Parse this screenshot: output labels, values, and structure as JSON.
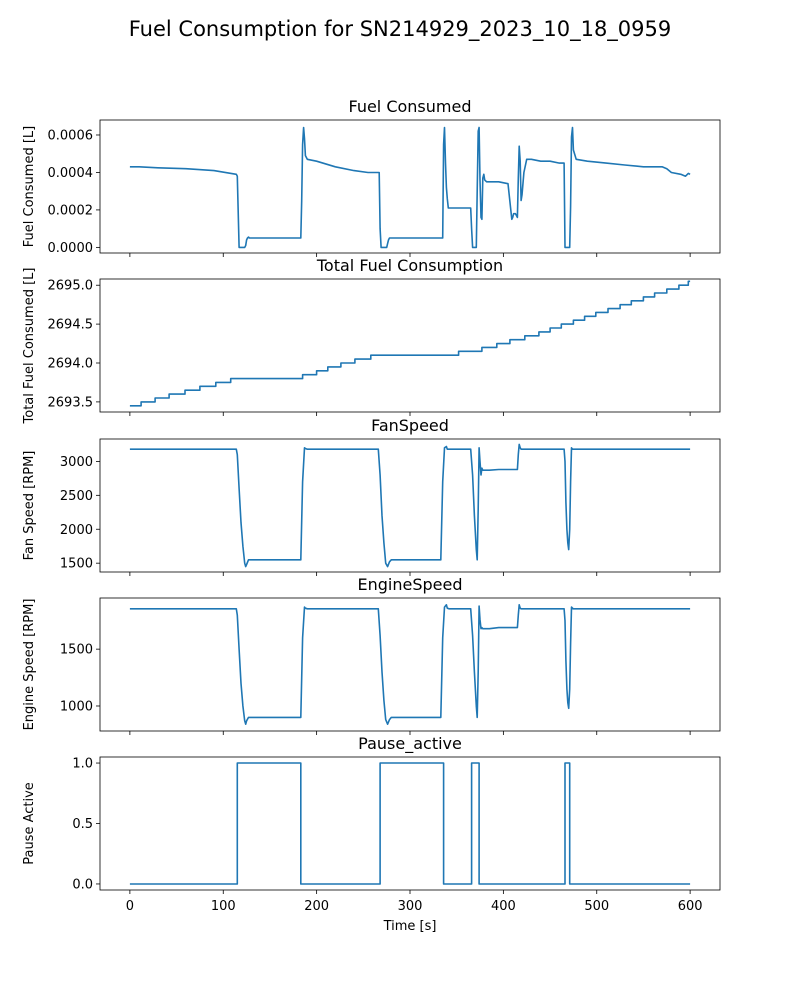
{
  "chart_data": {
    "type": "line",
    "title": "Fuel Consumption for SN214929_2023_10_18_0959",
    "line_color": "#1f77b4",
    "shared_x": {
      "label": "Time [s]",
      "range": [
        -32,
        632
      ],
      "ticks": [
        0,
        100,
        200,
        300,
        400,
        500,
        600
      ],
      "tick_labels": [
        "0",
        "100",
        "200",
        "300",
        "400",
        "500",
        "600"
      ]
    },
    "grid": false,
    "panels": [
      {
        "title": "Fuel Consumed",
        "ylabel": "Fuel Consumed [L]",
        "ylim": [
          -3e-05,
          0.00068
        ],
        "yticks": [
          0,
          0.0002,
          0.0004,
          0.0006
        ],
        "ytick_labels": [
          "0.0000",
          "0.0002",
          "0.0004",
          "0.0006"
        ],
        "series": [
          {
            "x": [
              0,
              10,
              30,
              60,
              90,
              114,
              115,
              117,
              123,
              124,
              125,
              126,
              127,
              128,
              130,
              140,
              160,
              183,
              184,
              185,
              186,
              187,
              188,
              190,
              200,
              220,
              240,
              255,
              267,
              268,
              269,
              270,
              275,
              276,
              277,
              278,
              280,
              300,
              320,
              335,
              336,
              337,
              338,
              339,
              340,
              341,
              345,
              350,
              355,
              365,
              366,
              367,
              368,
              369,
              370,
              371,
              372,
              373,
              374,
              375,
              376,
              377,
              378,
              379,
              380,
              382,
              385,
              395,
              405,
              408,
              409,
              410,
              411,
              413,
              415,
              416,
              417,
              418,
              419,
              420,
              422,
              425,
              430,
              440,
              450,
              460,
              464,
              465,
              466,
              467,
              468,
              470,
              471,
              472,
              473,
              474,
              475,
              478,
              490,
              510,
              530,
              550,
              570,
              575,
              580,
              590,
              595,
              598,
              600
            ],
            "y": [
              0.00043,
              0.00043,
              0.000425,
              0.00042,
              0.00041,
              0.00039,
              0.00038,
              0,
              0,
              1e-05,
              4e-05,
              5e-05,
              5.5e-05,
              5e-05,
              5e-05,
              5e-05,
              5e-05,
              5e-05,
              0.00025,
              0.00055,
              0.00064,
              0.00058,
              0.00049,
              0.00047,
              0.00046,
              0.00043,
              0.00041,
              0.0004,
              0.0004,
              0.0001,
              0,
              0,
              0,
              2e-05,
              4e-05,
              5e-05,
              5e-05,
              5e-05,
              5e-05,
              5e-05,
              0.00055,
              0.00064,
              0.00045,
              0.00032,
              0.00026,
              0.00021,
              0.00021,
              0.00021,
              0.00021,
              0.00021,
              0.0001,
              0,
              0,
              0,
              0,
              0,
              0.0003,
              0.00062,
              0.00064,
              0.00036,
              0.00016,
              0.00015,
              0.00037,
              0.00039,
              0.00036,
              0.00035,
              0.00035,
              0.00035,
              0.00034,
              0.0002,
              0.00015,
              0.00016,
              0.00018,
              0.00018,
              0.00016,
              0.00037,
              0.00054,
              0.00046,
              0.00025,
              0.00028,
              0.0004,
              0.00047,
              0.00047,
              0.00046,
              0.00046,
              0.00045,
              0.00045,
              0.00045,
              0,
              0,
              0,
              0,
              0,
              0.00022,
              0.00059,
              0.00064,
              0.00052,
              0.00047,
              0.00046,
              0.00045,
              0.00044,
              0.00043,
              0.00043,
              0.00042,
              0.0004,
              0.00039,
              0.00038,
              0.000395,
              0.00039
            ]
          }
        ]
      },
      {
        "title": "Total Fuel Consumption",
        "ylabel": "Total Fuel Consumed [L]",
        "ylim": [
          2693.37,
          2695.08
        ],
        "yticks": [
          2693.5,
          2694.0,
          2694.5,
          2695.0
        ],
        "ytick_labels": [
          "2693.5",
          "2694.0",
          "2694.5",
          "2695.0"
        ],
        "series": [
          {
            "x": [
              0,
              12,
              12,
              27,
              27,
              42,
              42,
              59,
              59,
              75,
              75,
              92,
              92,
              108,
              108,
              185,
              185,
              200,
              200,
              212,
              212,
              226,
              226,
              241,
              241,
              258,
              258,
              352,
              352,
              377,
              377,
              393,
              393,
              407,
              407,
              423,
              423,
              438,
              438,
              450,
              450,
              462,
              462,
              475,
              475,
              487,
              487,
              499,
              499,
              512,
              512,
              525,
              525,
              537,
              537,
              550,
              550,
              562,
              562,
              575,
              575,
              588,
              588,
              598,
              598,
              600
            ],
            "y": [
              2693.45,
              2693.45,
              2693.5,
              2693.5,
              2693.55,
              2693.55,
              2693.6,
              2693.6,
              2693.65,
              2693.65,
              2693.7,
              2693.7,
              2693.75,
              2693.75,
              2693.8,
              2693.8,
              2693.85,
              2693.85,
              2693.9,
              2693.9,
              2693.95,
              2693.95,
              2694.0,
              2694.0,
              2694.05,
              2694.05,
              2694.1,
              2694.1,
              2694.15,
              2694.15,
              2694.2,
              2694.2,
              2694.25,
              2694.25,
              2694.3,
              2694.3,
              2694.35,
              2694.35,
              2694.4,
              2694.4,
              2694.45,
              2694.45,
              2694.5,
              2694.5,
              2694.55,
              2694.55,
              2694.6,
              2694.6,
              2694.65,
              2694.65,
              2694.7,
              2694.7,
              2694.75,
              2694.75,
              2694.8,
              2694.8,
              2694.85,
              2694.85,
              2694.9,
              2694.9,
              2694.95,
              2694.95,
              2695.0,
              2695.0,
              2695.05,
              2695.05
            ]
          }
        ]
      },
      {
        "title": "FanSpeed",
        "ylabel": "Fan Speed [RPM]",
        "ylim": [
          1370,
          3330
        ],
        "yticks": [
          1500,
          2000,
          2500,
          3000
        ],
        "ytick_labels": [
          "1500",
          "2000",
          "2500",
          "3000"
        ],
        "series": [
          {
            "x": [
              0,
              50,
              100,
              114,
              115,
              117,
              119,
              121,
              123,
              124,
              125,
              127,
              130,
              150,
              175,
              183,
              185,
              187,
              188,
              190,
              220,
              266,
              268,
              270,
              272,
              274,
              276,
              278,
              280,
              290,
              310,
              333,
              335,
              337,
              339,
              340,
              342,
              345,
              355,
              365,
              367,
              369,
              371,
              372,
              373,
              374,
              375,
              376,
              377,
              378,
              379,
              380,
              385,
              395,
              405,
              410,
              415,
              416,
              417,
              418,
              419,
              420,
              422,
              430,
              450,
              465,
              466,
              467,
              468,
              469,
              470,
              471,
              472,
              473,
              474,
              475,
              476,
              480,
              500,
              550,
              600
            ],
            "y": [
              3180,
              3180,
              3180,
              3180,
              3100,
              2600,
              2100,
              1750,
              1500,
              1450,
              1480,
              1550,
              1550,
              1550,
              1550,
              1550,
              2700,
              3200,
              3190,
              3180,
              3180,
              3180,
              2800,
              2200,
              1800,
              1500,
              1450,
              1520,
              1550,
              1550,
              1550,
              1550,
              2700,
              3200,
              3220,
              3180,
              3180,
              3180,
              3180,
              3180,
              2800,
              2200,
              1700,
              1550,
              2300,
              3200,
              3000,
              2800,
              2900,
              2870,
              2870,
              2870,
              2870,
              2880,
              2880,
              2880,
              2880,
              3100,
              3250,
              3200,
              3180,
              3180,
              3180,
              3180,
              3180,
              3180,
              3000,
              2400,
              2000,
              1800,
              1700,
              2000,
              2700,
              3200,
              3180,
              3180,
              3180,
              3180,
              3180,
              3180,
              3180
            ]
          }
        ]
      },
      {
        "title": "EngineSpeed",
        "ylabel": "Engine Speed [RPM]",
        "ylim": [
          780,
          1950
        ],
        "yticks": [
          1000,
          1500
        ],
        "ytick_labels": [
          "1000",
          "1500"
        ],
        "series": [
          {
            "x": [
              0,
              50,
              100,
              114,
              115,
              117,
              119,
              121,
              123,
              124,
              125,
              127,
              130,
              150,
              175,
              183,
              185,
              187,
              188,
              190,
              220,
              266,
              268,
              270,
              272,
              274,
              276,
              278,
              280,
              290,
              310,
              333,
              335,
              337,
              339,
              340,
              342,
              345,
              355,
              365,
              367,
              369,
              371,
              372,
              373,
              374,
              375,
              376,
              377,
              378,
              379,
              380,
              385,
              395,
              405,
              410,
              415,
              416,
              417,
              418,
              419,
              420,
              422,
              430,
              450,
              465,
              466,
              467,
              468,
              469,
              470,
              471,
              472,
              473,
              474,
              475,
              476,
              480,
              500,
              550,
              600
            ],
            "y": [
              1855,
              1855,
              1855,
              1855,
              1800,
              1500,
              1200,
              1000,
              870,
              840,
              870,
              900,
              900,
              900,
              900,
              900,
              1600,
              1870,
              1860,
              1855,
              1855,
              1855,
              1620,
              1300,
              1050,
              880,
              840,
              880,
              900,
              900,
              900,
              900,
              1600,
              1870,
              1890,
              1860,
              1855,
              1855,
              1855,
              1855,
              1620,
              1300,
              1000,
              900,
              1300,
              1880,
              1760,
              1680,
              1690,
              1680,
              1680,
              1680,
              1680,
              1690,
              1690,
              1690,
              1690,
              1800,
              1890,
              1860,
              1855,
              1855,
              1855,
              1855,
              1855,
              1855,
              1750,
              1400,
              1150,
              1030,
              980,
              1150,
              1550,
              1870,
              1860,
              1855,
              1855,
              1855,
              1855,
              1855,
              1855
            ]
          }
        ]
      },
      {
        "title": "Pause_active",
        "ylabel": "Pause Active",
        "ylim": [
          -0.05,
          1.05
        ],
        "yticks": [
          0.0,
          0.5,
          1.0
        ],
        "ytick_labels": [
          "0.0",
          "0.5",
          "1.0"
        ],
        "series": [
          {
            "x": [
              0,
              115,
              115,
              183,
              183,
              268,
              268,
              336,
              336,
              366,
              366,
              374,
              374,
              466,
              466,
              471,
              471,
              600
            ],
            "y": [
              0,
              0,
              1,
              1,
              0,
              0,
              1,
              1,
              0,
              0,
              1,
              1,
              0,
              0,
              1,
              1,
              0,
              0
            ]
          }
        ]
      }
    ]
  }
}
